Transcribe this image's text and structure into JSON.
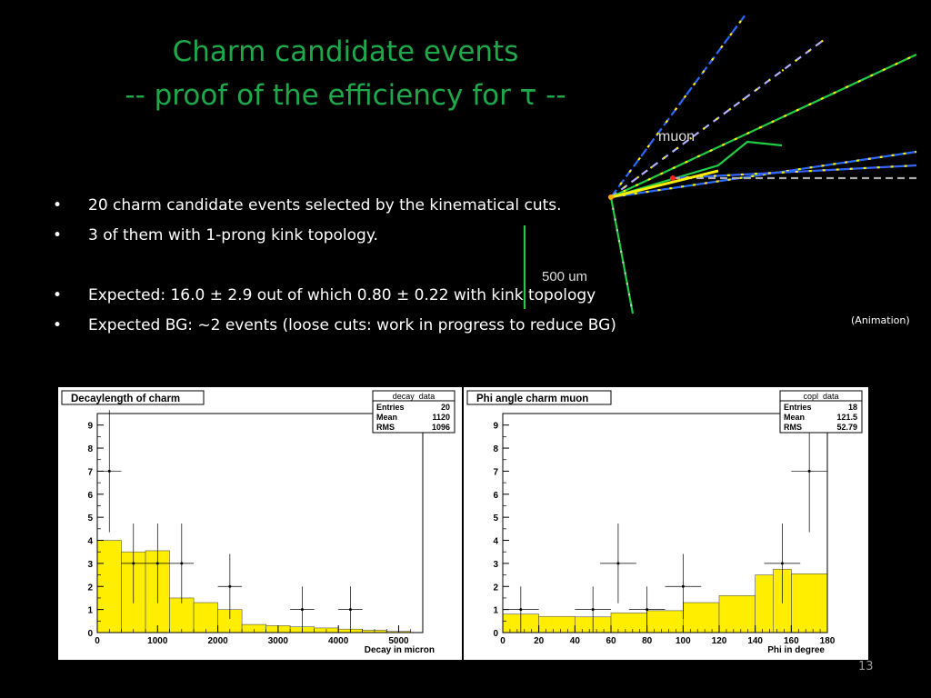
{
  "slide": {
    "title_line1": "Charm candidate events",
    "title_line2": "-- proof of the efficiency for τ --",
    "bullets": [
      "20 charm candidate events selected by the kinematical cuts.",
      "3 of them with 1-prong kink topology.",
      "Expected: 16.0 ± 2.9 out of which 0.80 ± 0.22 with kink topology",
      "Expected BG: ~2 events (loose cuts: work in progress to reduce BG)"
    ],
    "bullet_symbol": "•",
    "animation_note": "(Animation)",
    "page_number": "13",
    "event_display": {
      "muon_label": "muon",
      "scale_label": "500 um"
    }
  },
  "chart_data": [
    {
      "type": "bar",
      "title": "Decaylength of charm",
      "stats_name": "decay_data",
      "stats": [
        {
          "label": "Entries",
          "value": "20"
        },
        {
          "label": "Mean",
          "value": "1120"
        },
        {
          "label": "RMS",
          "value": "1096"
        }
      ],
      "xlabel": "Decay in micron",
      "ylabel": "",
      "xlim": [
        0,
        5400
      ],
      "ylim": [
        0,
        9.5
      ],
      "xticks": [
        0,
        1000,
        2000,
        3000,
        4000,
        5000
      ],
      "yticks": [
        0,
        1,
        2,
        3,
        4,
        5,
        6,
        7,
        8,
        9
      ],
      "fill_color": "#ffee00",
      "expected_bins": {
        "edges": [
          0,
          400,
          800,
          1200,
          1600,
          2000,
          2400,
          2800,
          3200,
          3600,
          4000,
          4400,
          4800,
          5200
        ],
        "values": [
          4.0,
          3.5,
          3.55,
          1.5,
          1.3,
          1.0,
          0.35,
          0.3,
          0.25,
          0.2,
          0.15,
          0.1,
          0.05
        ]
      },
      "data_points": [
        {
          "x": 200,
          "y": 7,
          "xerr": 200,
          "yerr": 2.65
        },
        {
          "x": 600,
          "y": 3,
          "xerr": 200,
          "yerr": 1.73
        },
        {
          "x": 1000,
          "y": 3,
          "xerr": 200,
          "yerr": 1.73
        },
        {
          "x": 1400,
          "y": 3,
          "xerr": 200,
          "yerr": 1.73
        },
        {
          "x": 2200,
          "y": 2,
          "xerr": 200,
          "yerr": 1.41
        },
        {
          "x": 3400,
          "y": 1,
          "xerr": 200,
          "yerr": 1.0
        },
        {
          "x": 4200,
          "y": 1,
          "xerr": 200,
          "yerr": 1.0
        }
      ]
    },
    {
      "type": "bar",
      "title": "Phi angle charm muon",
      "stats_name": "copl_data",
      "stats": [
        {
          "label": "Entries",
          "value": "18"
        },
        {
          "label": "Mean",
          "value": "121.5"
        },
        {
          "label": "RMS",
          "value": "52.79"
        }
      ],
      "xlabel": "Phi in degree",
      "ylabel": "",
      "xlim": [
        0,
        180
      ],
      "ylim": [
        0,
        9.5
      ],
      "xticks": [
        0,
        20,
        40,
        60,
        80,
        100,
        120,
        140,
        160,
        180
      ],
      "yticks": [
        0,
        1,
        2,
        3,
        4,
        5,
        6,
        7,
        8,
        9
      ],
      "fill_color": "#ffee00",
      "expected_bins": {
        "edges": [
          0,
          20,
          40,
          60,
          80,
          100,
          120,
          140,
          160,
          180
        ],
        "values": [
          0.8,
          0.7,
          0.68,
          0.85,
          0.95,
          1.3,
          1.6,
          2.5,
          2.55
        ],
        "extra": [
          {
            "from": 150,
            "to": 160,
            "value": 2.75
          }
        ]
      },
      "data_points": [
        {
          "x": 10,
          "y": 1,
          "xerr": 10,
          "yerr": 1.0
        },
        {
          "x": 50,
          "y": 1,
          "xerr": 10,
          "yerr": 1.0
        },
        {
          "x": 64,
          "y": 3,
          "xerr": 10,
          "yerr": 1.73
        },
        {
          "x": 80,
          "y": 1,
          "xerr": 10,
          "yerr": 1.0
        },
        {
          "x": 100,
          "y": 2,
          "xerr": 10,
          "yerr": 1.41
        },
        {
          "x": 155,
          "y": 3,
          "xerr": 10,
          "yerr": 1.73
        },
        {
          "x": 170,
          "y": 7,
          "xerr": 10,
          "yerr": 2.65
        }
      ]
    }
  ]
}
